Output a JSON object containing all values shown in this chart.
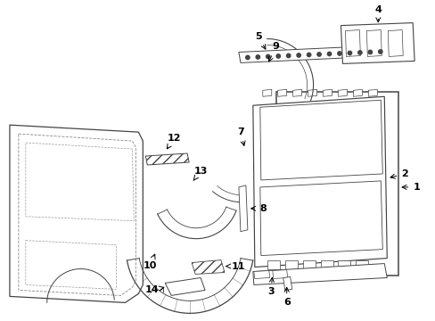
{
  "bg_color": "#ffffff",
  "line_color": "#444444",
  "label_color": "#000000",
  "figsize": [
    4.89,
    3.6
  ],
  "dpi": 100,
  "lw_main": 0.8,
  "lw_detail": 0.5
}
